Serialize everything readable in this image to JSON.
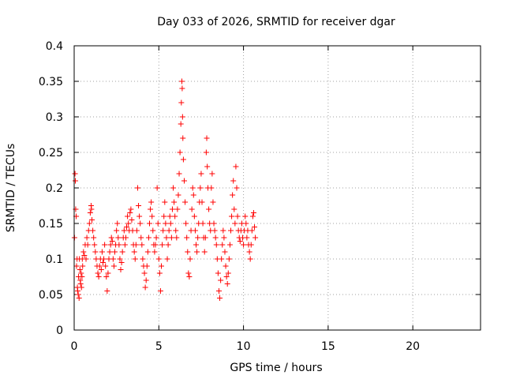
{
  "chart_data": {
    "type": "scatter",
    "title": "Day 033 of 2026, SRMTID for receiver dgar",
    "xlabel": "GPS time / hours",
    "ylabel": "SRMTID / TECUs",
    "xlim": [
      0,
      24
    ],
    "ylim": [
      0,
      0.4
    ],
    "xticks": [
      0,
      5,
      10,
      15,
      20
    ],
    "xtick_labels": [
      "0",
      "5",
      "10",
      "15",
      "20"
    ],
    "yticks": [
      0,
      0.05,
      0.1,
      0.15,
      0.2,
      0.25,
      0.3,
      0.35,
      0.4
    ],
    "ytick_labels": [
      "0",
      "0.05",
      "0.1",
      "0.15",
      "0.2",
      "0.25",
      "0.3",
      "0.35",
      "0.4"
    ],
    "grid": true,
    "marker": "+",
    "color": "#ff0000",
    "series": [
      {
        "name": "SRMTID",
        "points": [
          [
            0.02,
            0.13
          ],
          [
            0.05,
            0.22
          ],
          [
            0.07,
            0.21
          ],
          [
            0.09,
            0.17
          ],
          [
            0.12,
            0.16
          ],
          [
            0.14,
            0.09
          ],
          [
            0.17,
            0.1
          ],
          [
            0.19,
            0.06
          ],
          [
            0.21,
            0.055
          ],
          [
            0.24,
            0.05
          ],
          [
            0.26,
            0.075
          ],
          [
            0.29,
            0.045
          ],
          [
            0.31,
            0.1
          ],
          [
            0.34,
            0.085
          ],
          [
            0.36,
            0.07
          ],
          [
            0.38,
            0.065
          ],
          [
            0.41,
            0.08
          ],
          [
            0.43,
            0.06
          ],
          [
            0.46,
            0.075
          ],
          [
            0.48,
            0.1
          ],
          [
            0.5,
            0.09
          ],
          [
            0.55,
            0.11
          ],
          [
            0.6,
            0.105
          ],
          [
            0.65,
            0.12
          ],
          [
            0.7,
            0.1
          ],
          [
            0.75,
            0.13
          ],
          [
            0.8,
            0.12
          ],
          [
            0.85,
            0.14
          ],
          [
            0.9,
            0.15
          ],
          [
            0.95,
            0.165
          ],
          [
            1.0,
            0.175
          ],
          [
            1.02,
            0.17
          ],
          [
            1.05,
            0.155
          ],
          [
            1.1,
            0.14
          ],
          [
            1.15,
            0.13
          ],
          [
            1.2,
            0.12
          ],
          [
            1.25,
            0.11
          ],
          [
            1.3,
            0.1
          ],
          [
            1.35,
            0.09
          ],
          [
            1.4,
            0.08
          ],
          [
            1.45,
            0.075
          ],
          [
            1.5,
            0.09
          ],
          [
            1.55,
            0.1
          ],
          [
            1.6,
            0.085
          ],
          [
            1.65,
            0.11
          ],
          [
            1.7,
            0.095
          ],
          [
            1.75,
            0.1
          ],
          [
            1.8,
            0.12
          ],
          [
            1.85,
            0.09
          ],
          [
            1.9,
            0.075
          ],
          [
            1.95,
            0.055
          ],
          [
            2.0,
            0.08
          ],
          [
            2.05,
            0.1
          ],
          [
            2.1,
            0.11
          ],
          [
            2.15,
            0.12
          ],
          [
            2.2,
            0.13
          ],
          [
            2.25,
            0.125
          ],
          [
            2.3,
            0.1
          ],
          [
            2.35,
            0.09
          ],
          [
            2.4,
            0.11
          ],
          [
            2.45,
            0.12
          ],
          [
            2.5,
            0.14
          ],
          [
            2.55,
            0.15
          ],
          [
            2.6,
            0.13
          ],
          [
            2.65,
            0.12
          ],
          [
            2.7,
            0.1
          ],
          [
            2.75,
            0.085
          ],
          [
            2.8,
            0.095
          ],
          [
            2.85,
            0.11
          ],
          [
            2.9,
            0.13
          ],
          [
            2.95,
            0.14
          ],
          [
            3.0,
            0.12
          ],
          [
            3.05,
            0.13
          ],
          [
            3.1,
            0.145
          ],
          [
            3.15,
            0.16
          ],
          [
            3.2,
            0.15
          ],
          [
            3.25,
            0.14
          ],
          [
            3.3,
            0.165
          ],
          [
            3.35,
            0.17
          ],
          [
            3.4,
            0.155
          ],
          [
            3.45,
            0.14
          ],
          [
            3.5,
            0.12
          ],
          [
            3.55,
            0.11
          ],
          [
            3.6,
            0.1
          ],
          [
            3.65,
            0.12
          ],
          [
            3.7,
            0.14
          ],
          [
            3.75,
            0.2
          ],
          [
            3.8,
            0.175
          ],
          [
            3.85,
            0.16
          ],
          [
            3.9,
            0.15
          ],
          [
            3.95,
            0.13
          ],
          [
            4.0,
            0.12
          ],
          [
            4.05,
            0.1
          ],
          [
            4.1,
            0.09
          ],
          [
            4.15,
            0.08
          ],
          [
            4.2,
            0.06
          ],
          [
            4.25,
            0.07
          ],
          [
            4.3,
            0.09
          ],
          [
            4.35,
            0.11
          ],
          [
            4.4,
            0.13
          ],
          [
            4.45,
            0.15
          ],
          [
            4.5,
            0.17
          ],
          [
            4.55,
            0.18
          ],
          [
            4.6,
            0.16
          ],
          [
            4.65,
            0.14
          ],
          [
            4.7,
            0.12
          ],
          [
            4.75,
            0.11
          ],
          [
            4.8,
            0.12
          ],
          [
            4.85,
            0.13
          ],
          [
            4.9,
            0.2
          ],
          [
            4.95,
            0.15
          ],
          [
            5.0,
            0.1
          ],
          [
            5.05,
            0.08
          ],
          [
            5.1,
            0.055
          ],
          [
            5.15,
            0.09
          ],
          [
            5.2,
            0.12
          ],
          [
            5.25,
            0.14
          ],
          [
            5.3,
            0.16
          ],
          [
            5.35,
            0.18
          ],
          [
            5.4,
            0.15
          ],
          [
            5.45,
            0.13
          ],
          [
            5.5,
            0.1
          ],
          [
            5.55,
            0.12
          ],
          [
            5.6,
            0.14
          ],
          [
            5.65,
            0.16
          ],
          [
            5.7,
            0.15
          ],
          [
            5.75,
            0.13
          ],
          [
            5.8,
            0.17
          ],
          [
            5.85,
            0.2
          ],
          [
            5.9,
            0.18
          ],
          [
            5.95,
            0.16
          ],
          [
            6.0,
            0.14
          ],
          [
            6.05,
            0.13
          ],
          [
            6.1,
            0.17
          ],
          [
            6.15,
            0.19
          ],
          [
            6.2,
            0.22
          ],
          [
            6.25,
            0.25
          ],
          [
            6.3,
            0.29
          ],
          [
            6.33,
            0.32
          ],
          [
            6.36,
            0.35
          ],
          [
            6.38,
            0.34
          ],
          [
            6.4,
            0.3
          ],
          [
            6.42,
            0.27
          ],
          [
            6.45,
            0.24
          ],
          [
            6.5,
            0.21
          ],
          [
            6.55,
            0.18
          ],
          [
            6.6,
            0.15
          ],
          [
            6.65,
            0.13
          ],
          [
            6.7,
            0.11
          ],
          [
            6.75,
            0.08
          ],
          [
            6.8,
            0.075
          ],
          [
            6.85,
            0.1
          ],
          [
            6.9,
            0.14
          ],
          [
            6.95,
            0.17
          ],
          [
            7.0,
            0.2
          ],
          [
            7.05,
            0.19
          ],
          [
            7.1,
            0.16
          ],
          [
            7.15,
            0.14
          ],
          [
            7.2,
            0.12
          ],
          [
            7.25,
            0.11
          ],
          [
            7.3,
            0.13
          ],
          [
            7.35,
            0.15
          ],
          [
            7.4,
            0.18
          ],
          [
            7.45,
            0.2
          ],
          [
            7.5,
            0.22
          ],
          [
            7.55,
            0.18
          ],
          [
            7.6,
            0.15
          ],
          [
            7.65,
            0.13
          ],
          [
            7.7,
            0.11
          ],
          [
            7.75,
            0.13
          ],
          [
            7.8,
            0.25
          ],
          [
            7.83,
            0.27
          ],
          [
            7.86,
            0.23
          ],
          [
            7.9,
            0.2
          ],
          [
            7.95,
            0.17
          ],
          [
            8.0,
            0.15
          ],
          [
            8.05,
            0.14
          ],
          [
            8.1,
            0.2
          ],
          [
            8.15,
            0.22
          ],
          [
            8.2,
            0.18
          ],
          [
            8.25,
            0.15
          ],
          [
            8.3,
            0.14
          ],
          [
            8.35,
            0.13
          ],
          [
            8.4,
            0.12
          ],
          [
            8.45,
            0.1
          ],
          [
            8.5,
            0.08
          ],
          [
            8.55,
            0.055
          ],
          [
            8.6,
            0.045
          ],
          [
            8.65,
            0.07
          ],
          [
            8.7,
            0.1
          ],
          [
            8.75,
            0.12
          ],
          [
            8.8,
            0.14
          ],
          [
            8.85,
            0.13
          ],
          [
            8.9,
            0.11
          ],
          [
            8.95,
            0.09
          ],
          [
            9.0,
            0.075
          ],
          [
            9.05,
            0.065
          ],
          [
            9.1,
            0.08
          ],
          [
            9.15,
            0.1
          ],
          [
            9.2,
            0.12
          ],
          [
            9.25,
            0.14
          ],
          [
            9.3,
            0.16
          ],
          [
            9.35,
            0.19
          ],
          [
            9.4,
            0.21
          ],
          [
            9.45,
            0.17
          ],
          [
            9.5,
            0.15
          ],
          [
            9.55,
            0.23
          ],
          [
            9.6,
            0.2
          ],
          [
            9.65,
            0.16
          ],
          [
            9.7,
            0.14
          ],
          [
            9.75,
            0.13
          ],
          [
            9.8,
            0.125
          ],
          [
            9.85,
            0.14
          ],
          [
            9.9,
            0.15
          ],
          [
            9.95,
            0.13
          ],
          [
            10.0,
            0.12
          ],
          [
            10.05,
            0.14
          ],
          [
            10.1,
            0.16
          ],
          [
            10.15,
            0.15
          ],
          [
            10.2,
            0.13
          ],
          [
            10.25,
            0.14
          ],
          [
            10.3,
            0.12
          ],
          [
            10.35,
            0.11
          ],
          [
            10.4,
            0.1
          ],
          [
            10.45,
            0.12
          ],
          [
            10.5,
            0.14
          ],
          [
            10.55,
            0.16
          ],
          [
            10.6,
            0.165
          ],
          [
            10.65,
            0.145
          ],
          [
            10.7,
            0.13
          ]
        ]
      }
    ]
  }
}
